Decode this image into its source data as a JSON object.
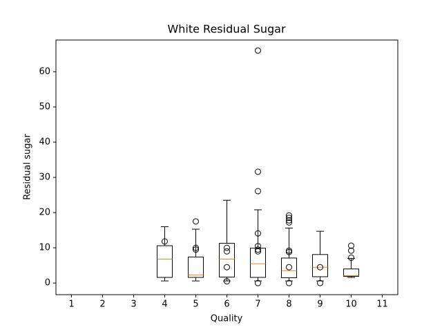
{
  "chart_data": {
    "type": "boxplot",
    "title": "White Residual Sugar",
    "xlabel": "Quality",
    "ylabel": "Residual sugar",
    "xlim": [
      0.5,
      11.5
    ],
    "xticks": [
      1,
      2,
      3,
      4,
      5,
      6,
      7,
      8,
      9,
      10,
      11
    ],
    "ylim": [
      -3.3,
      69.0
    ],
    "yticks": [
      0,
      10,
      20,
      30,
      40,
      50,
      60
    ],
    "box_color": "#000000",
    "median_color": "#ff7f0e",
    "boxes": [
      {
        "position": 4,
        "whislo": 0.6,
        "q1": 1.6,
        "med": 6.8,
        "q3": 10.6,
        "whishi": 16.0,
        "fliers": [
          11.8
        ]
      },
      {
        "position": 5,
        "whislo": 0.6,
        "q1": 1.6,
        "med": 2.3,
        "q3": 7.4,
        "whishi": 15.3,
        "fliers": [
          17.5,
          10.0,
          9.5
        ]
      },
      {
        "position": 6,
        "whislo": 0.6,
        "q1": 1.7,
        "med": 6.8,
        "q3": 11.3,
        "whishi": 23.5,
        "fliers": [
          10.0,
          9.0,
          4.5,
          0.5
        ]
      },
      {
        "position": 7,
        "whislo": 0.6,
        "q1": 1.6,
        "med": 5.5,
        "q3": 9.9,
        "whishi": 20.8,
        "fliers": [
          66.0,
          31.6,
          26.1,
          14.1,
          10.5,
          9.5,
          9.0,
          0.0
        ]
      },
      {
        "position": 8,
        "whislo": 0.6,
        "q1": 1.5,
        "med": 3.5,
        "q3": 7.1,
        "whishi": 15.6,
        "fliers": [
          19.2,
          18.5,
          17.8,
          17.2,
          9.2,
          8.8,
          4.5,
          0.0
        ]
      },
      {
        "position": 9,
        "whislo": 0.6,
        "q1": 1.8,
        "med": 4.5,
        "q3": 8.1,
        "whishi": 14.7,
        "fliers": [
          4.5,
          0.0
        ]
      },
      {
        "position": 10,
        "whislo": 1.6,
        "q1": 1.9,
        "med": 2.1,
        "q3": 4.0,
        "whishi": 7.0,
        "fliers": [
          10.6,
          9.2,
          7.2
        ]
      }
    ]
  }
}
